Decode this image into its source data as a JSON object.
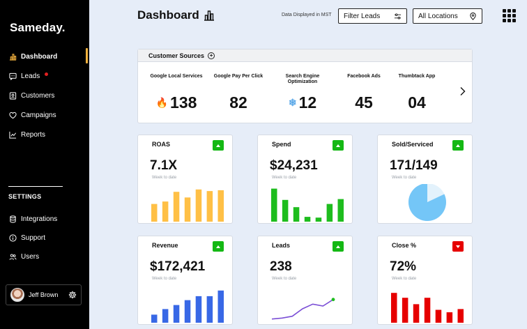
{
  "app": {
    "brand": "Sameday."
  },
  "sidebar": {
    "items": [
      {
        "label": "Dashboard",
        "icon": "bar-chart-icon",
        "active": true
      },
      {
        "label": "Leads",
        "icon": "message-icon",
        "has_notification": true
      },
      {
        "label": "Customers",
        "icon": "contact-card-icon"
      },
      {
        "label": "Campaigns",
        "icon": "heart-icon"
      },
      {
        "label": "Reports",
        "icon": "line-chart-icon"
      }
    ],
    "settings_label": "SETTINGS",
    "settings_items": [
      {
        "label": "Integrations",
        "icon": "database-icon"
      },
      {
        "label": "Support",
        "icon": "info-icon"
      },
      {
        "label": "Users",
        "icon": "users-icon"
      }
    ],
    "user": {
      "name": "Jeff Brown"
    }
  },
  "header": {
    "title": "Dashboard",
    "tz_note": "Data Displayed in MST",
    "filter_label": "Filter Leads",
    "location_label": "All Locations"
  },
  "sources": {
    "title": "Customer Sources",
    "items": [
      {
        "label": "Google Local Services",
        "value": "138",
        "badge": "🔥"
      },
      {
        "label": "Google Pay Per Click",
        "value": "82"
      },
      {
        "label": "Search Engine Optimization",
        "value": "12",
        "badge": "❄"
      },
      {
        "label": "Facebook Ads",
        "value": "45"
      },
      {
        "label": "Thumbtack App",
        "value": "04"
      }
    ]
  },
  "cards": [
    {
      "title": "ROAS",
      "value": "7.1X",
      "sub": "Week to date",
      "trend": "up",
      "chart": {
        "type": "bar",
        "color": "#ffc046",
        "values": [
          22,
          25,
          37,
          30,
          40,
          38,
          39
        ]
      }
    },
    {
      "title": "Spend",
      "value": "$24,231",
      "sub": "Week to date",
      "trend": "up",
      "chart": {
        "type": "bar",
        "color": "#1ebd1e",
        "values": [
          41,
          27,
          18,
          6,
          5,
          22,
          28
        ]
      }
    },
    {
      "title": "Sold/Serviced",
      "value": "171/149",
      "sub": "Week to date",
      "trend": "up",
      "chart": {
        "type": "pie",
        "color": "#74c6f7",
        "light": "#e3f2fc",
        "fraction": 0.82
      }
    },
    {
      "title": "Revenue",
      "value": "$172,421",
      "sub": "Week to date",
      "trend": "up",
      "chart": {
        "type": "bar",
        "color": "#3868e6",
        "values": [
          10,
          17,
          22,
          28,
          33,
          33,
          40
        ]
      }
    },
    {
      "title": "Leads",
      "value": "238",
      "sub": "Week to date",
      "trend": "up",
      "chart": {
        "type": "line",
        "color": "#7b4fd6",
        "end_color": "#1ebd1e",
        "values": [
          1,
          2,
          4,
          12,
          17,
          15,
          22
        ]
      }
    },
    {
      "title": "Close %",
      "value": "72%",
      "sub": "Week to date",
      "trend": "down",
      "chart": {
        "type": "bar",
        "color": "#e60000",
        "values": [
          37,
          31,
          23,
          31,
          16,
          13,
          17
        ]
      }
    }
  ]
}
